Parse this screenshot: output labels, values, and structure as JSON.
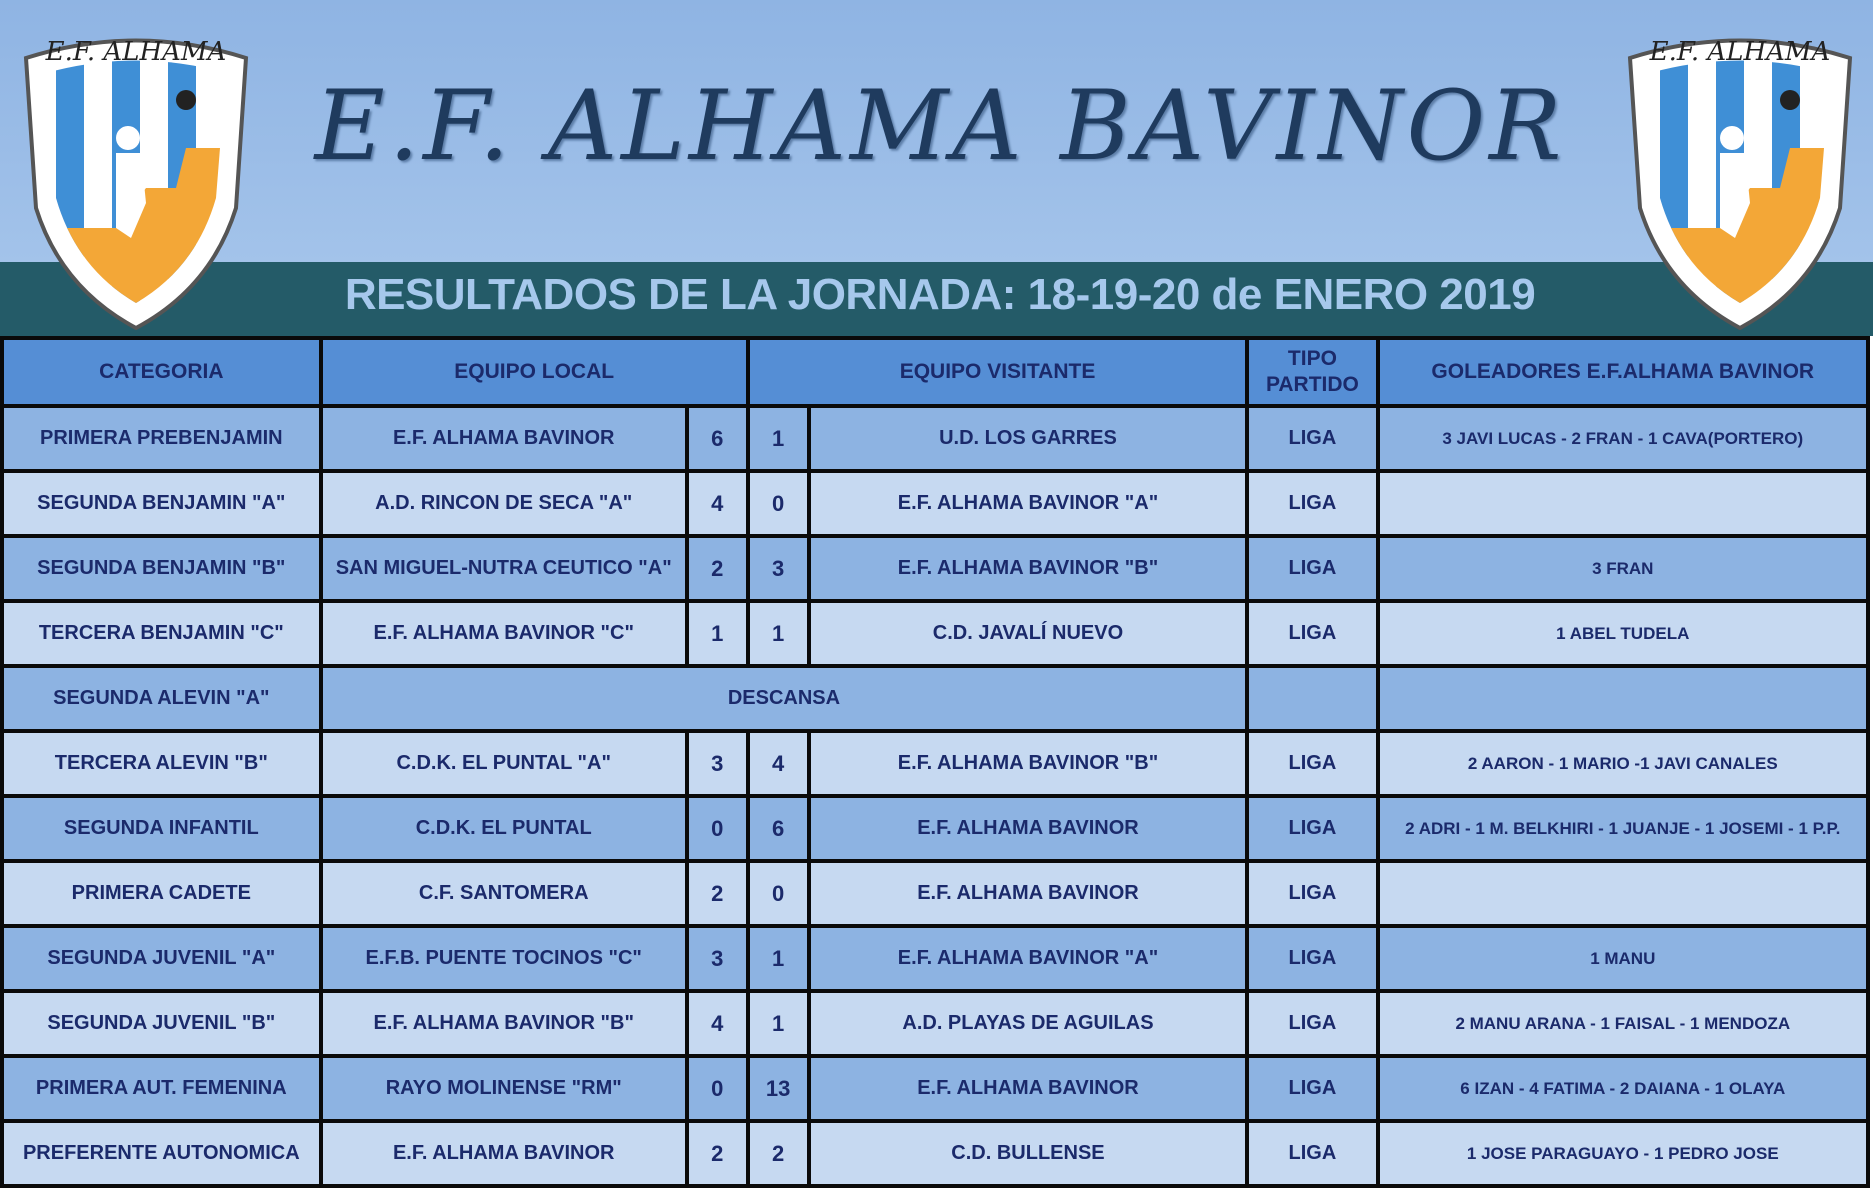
{
  "header": {
    "title": "E.F. ALHAMA BAVINOR",
    "subtitle": "RESULTADOS DE LA JORNADA: 18-19-20 de ENERO 2019",
    "logo_text": "E.F. ALHAMA"
  },
  "colors": {
    "header_row": "#558ed5",
    "row_dark": "#8db3e2",
    "row_light": "#c6d9f1",
    "text": "#1b2a6b",
    "band": "#245b68"
  },
  "table": {
    "columns": [
      "CATEGORIA",
      "EQUIPO LOCAL",
      "EQUIPO VISITANTE",
      "TIPO PARTIDO",
      "GOLEADORES E.F.ALHAMA BAVINOR"
    ],
    "rows": [
      {
        "categoria": "PRIMERA PREBENJAMIN",
        "local": "E.F. ALHAMA BAVINOR",
        "gl": "6",
        "gv": "1",
        "visitante": "U.D. LOS GARRES",
        "tipo": "LIGA",
        "goleadores": "3 JAVI LUCAS - 2 FRAN - 1 CAVA(PORTERO)"
      },
      {
        "categoria": "SEGUNDA BENJAMIN \"A\"",
        "local": "A.D. RINCON DE SECA \"A\"",
        "gl": "4",
        "gv": "0",
        "visitante": "E.F. ALHAMA BAVINOR \"A\"",
        "tipo": "LIGA",
        "goleadores": ""
      },
      {
        "categoria": "SEGUNDA BENJAMIN \"B\"",
        "local": "SAN MIGUEL-NUTRA CEUTICO \"A\"",
        "gl": "2",
        "gv": "3",
        "visitante": "E.F. ALHAMA BAVINOR \"B\"",
        "tipo": "LIGA",
        "goleadores": "3 FRAN"
      },
      {
        "categoria": "TERCERA BENJAMIN \"C\"",
        "local": "E.F. ALHAMA BAVINOR \"C\"",
        "gl": "1",
        "gv": "1",
        "visitante": "C.D. JAVALÍ NUEVO",
        "tipo": "LIGA",
        "goleadores": "1 ABEL TUDELA"
      },
      {
        "categoria": "SEGUNDA ALEVIN \"A\"",
        "descansa": "DESCANSA",
        "tipo": "",
        "goleadores": ""
      },
      {
        "categoria": "TERCERA ALEVIN \"B\"",
        "local": "C.D.K. EL PUNTAL \"A\"",
        "gl": "3",
        "gv": "4",
        "visitante": "E.F. ALHAMA BAVINOR \"B\"",
        "tipo": "LIGA",
        "goleadores": "2 AARON - 1 MARIO -1 JAVI CANALES"
      },
      {
        "categoria": "SEGUNDA INFANTIL",
        "local": "C.D.K. EL PUNTAL",
        "gl": "0",
        "gv": "6",
        "visitante": "E.F. ALHAMA BAVINOR",
        "tipo": "LIGA",
        "goleadores": "2 ADRI - 1 M. BELKHIRI - 1 JUANJE - 1 JOSEMI - 1 P.P."
      },
      {
        "categoria": "PRIMERA CADETE",
        "local": "C.F. SANTOMERA",
        "gl": "2",
        "gv": "0",
        "visitante": "E.F. ALHAMA BAVINOR",
        "tipo": "LIGA",
        "goleadores": ""
      },
      {
        "categoria": "SEGUNDA JUVENIL \"A\"",
        "local": "E.F.B. PUENTE TOCINOS \"C\"",
        "gl": "3",
        "gv": "1",
        "visitante": "E.F. ALHAMA BAVINOR \"A\"",
        "tipo": "LIGA",
        "goleadores": "1 MANU"
      },
      {
        "categoria": "SEGUNDA JUVENIL \"B\"",
        "local": "E.F. ALHAMA BAVINOR \"B\"",
        "gl": "4",
        "gv": "1",
        "visitante": "A.D. PLAYAS DE AGUILAS",
        "tipo": "LIGA",
        "goleadores": "2 MANU ARANA - 1 FAISAL - 1 MENDOZA"
      },
      {
        "categoria": "PRIMERA AUT. FEMENINA",
        "local": "RAYO MOLINENSE \"RM\"",
        "gl": "0",
        "gv": "13",
        "visitante": "E.F. ALHAMA BAVINOR",
        "tipo": "LIGA",
        "goleadores": "6 IZAN - 4 FATIMA - 2 DAIANA - 1 OLAYA"
      },
      {
        "categoria": "PREFERENTE AUTONOMICA",
        "local": "E.F. ALHAMA BAVINOR",
        "gl": "2",
        "gv": "2",
        "visitante": "C.D. BULLENSE",
        "tipo": "LIGA",
        "goleadores": "1 JOSE PARAGUAYO - 1 PEDRO JOSE"
      }
    ]
  }
}
